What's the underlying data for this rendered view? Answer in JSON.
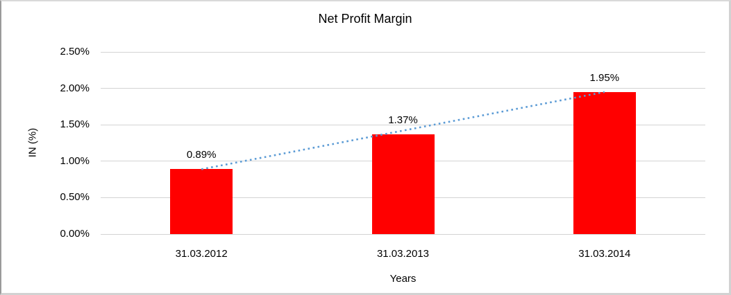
{
  "chart_data": {
    "type": "bar",
    "title": "Net Profit Margin",
    "xlabel": "Years",
    "ylabel": "IN (%)",
    "categories": [
      "31.03.2012",
      "31.03.2013",
      "31.03.2014"
    ],
    "series": [
      {
        "name": "Net Profit Margin",
        "values": [
          0.89,
          1.37,
          1.95
        ]
      }
    ],
    "data_labels": [
      "0.89%",
      "1.37%",
      "1.95%"
    ],
    "ylim": [
      0,
      2.5
    ],
    "ytick_step": 0.5,
    "ytick_labels": [
      "0.00%",
      "0.50%",
      "1.00%",
      "1.50%",
      "2.00%",
      "2.50%"
    ],
    "grid": true,
    "legend": "none",
    "bar_color": "#FF0000",
    "gridline_color": "#D3D3D3",
    "trendline": {
      "type": "linear",
      "style": "dotted",
      "color": "#5B9BD5"
    }
  }
}
